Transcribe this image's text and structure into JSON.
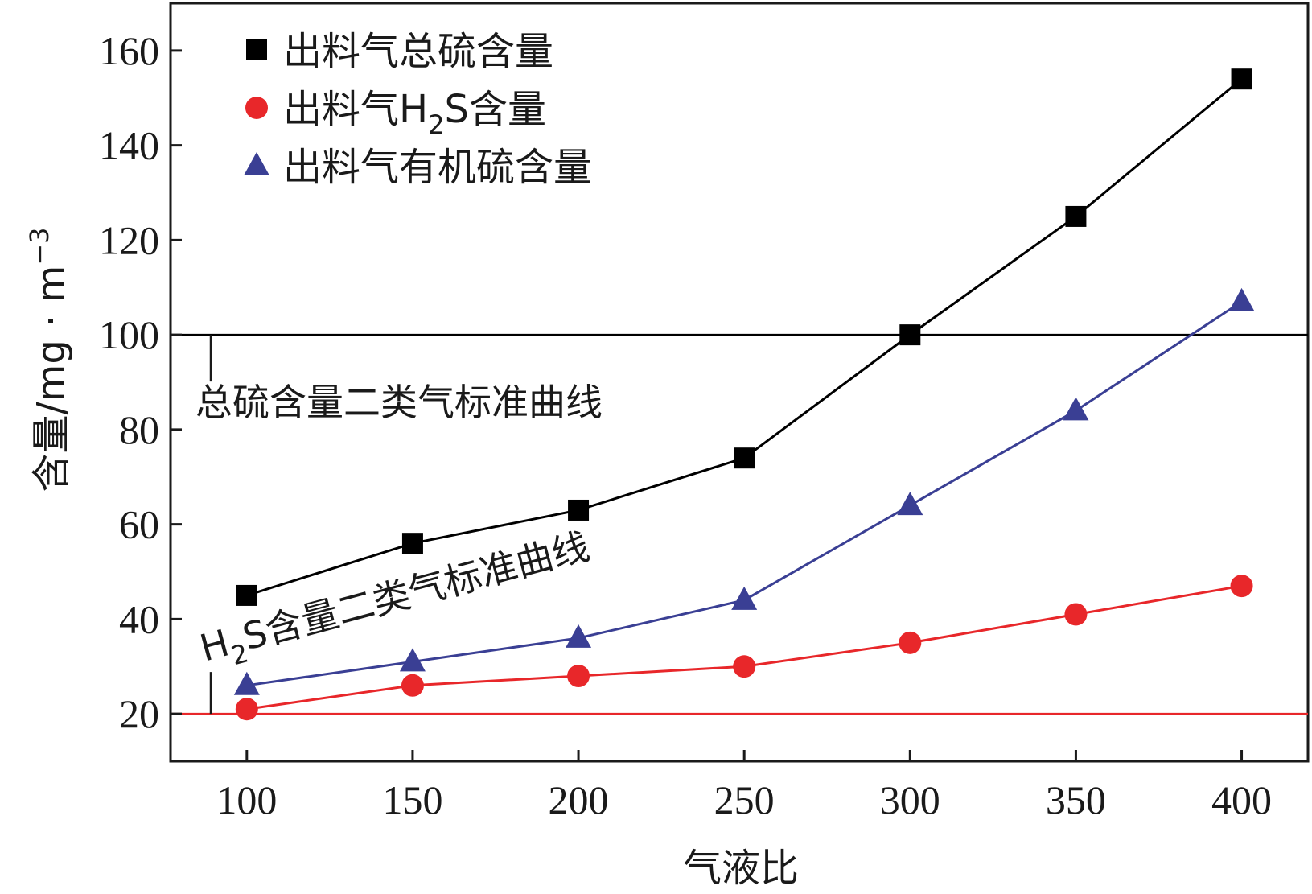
{
  "chart_data": {
    "type": "line",
    "xlabel": "气液比",
    "ylabel": "含量/mg · m",
    "ylabel_sup": "−3",
    "x": [
      100,
      150,
      200,
      250,
      300,
      350,
      400
    ],
    "xlim": [
      77,
      420
    ],
    "ylim": [
      10,
      170
    ],
    "xticks": [
      100,
      150,
      200,
      250,
      300,
      350,
      400
    ],
    "yticks": [
      20,
      40,
      60,
      80,
      100,
      120,
      140,
      160
    ],
    "grid": false,
    "legend_position": "top-left",
    "series": [
      {
        "name": "出料气总硫含量",
        "legend": {
          "pre": "出料气总硫含量",
          "sub": "",
          "post": ""
        },
        "marker": "square",
        "color": "#000000",
        "line_color": "#000000",
        "values": [
          45,
          56,
          63,
          74,
          100,
          125,
          154
        ]
      },
      {
        "name": "出料气H2S含量",
        "legend": {
          "pre": "出料气H",
          "sub": "2",
          "post": "S含量"
        },
        "marker": "circle",
        "color": "#e8272a",
        "line_color": "#e8272a",
        "values": [
          21,
          26,
          28,
          30,
          35,
          41,
          47
        ]
      },
      {
        "name": "出料气有机硫含量",
        "legend": {
          "pre": "出料气有机硫含量",
          "sub": "",
          "post": ""
        },
        "marker": "triangle",
        "color": "#3a3f94",
        "line_color": "#3a3f94",
        "values": [
          26,
          31,
          36,
          44,
          64,
          84,
          107
        ]
      }
    ],
    "reference_lines": [
      {
        "y": 100,
        "color": "#000000",
        "label": "总硫含量二类气标准曲线"
      },
      {
        "y": 20,
        "color": "#e8272a",
        "label_pre": "H",
        "label_sub": "2",
        "label_post": "S含量二类气标准曲线"
      }
    ]
  }
}
